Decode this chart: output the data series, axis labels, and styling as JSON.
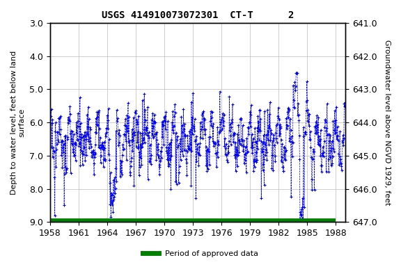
{
  "title": "USGS 414910073072301  CT-T      2",
  "ylabel_left": "Depth to water level, feet below land\nsurface",
  "ylabel_right": "Groundwater level above NGVD 1929, feet",
  "ylim_left": [
    3.0,
    9.0
  ],
  "ylim_right": [
    647.0,
    641.0
  ],
  "xlim": [
    1958,
    1989
  ],
  "xticks": [
    1958,
    1961,
    1964,
    1967,
    1970,
    1973,
    1976,
    1979,
    1982,
    1985,
    1988
  ],
  "yticks_left": [
    3.0,
    4.0,
    5.0,
    6.0,
    7.0,
    8.0,
    9.0
  ],
  "yticks_right": [
    647.0,
    646.0,
    645.0,
    644.0,
    643.0,
    642.0,
    641.0
  ],
  "data_color": "#0000FF",
  "bar_color": "#008000",
  "legend_label": "Period of approved data",
  "background_color": "#FFFFFF",
  "title_fontsize": 10,
  "label_fontsize": 8,
  "tick_fontsize": 9,
  "bar_y": 9.0,
  "bar_xstart": 1958,
  "bar_xend": 1988,
  "seed": 12345,
  "base_depth": 6.5,
  "seasonal_amp": 0.5,
  "noise_std": 0.35,
  "n_years": 31,
  "start_year": 1958
}
